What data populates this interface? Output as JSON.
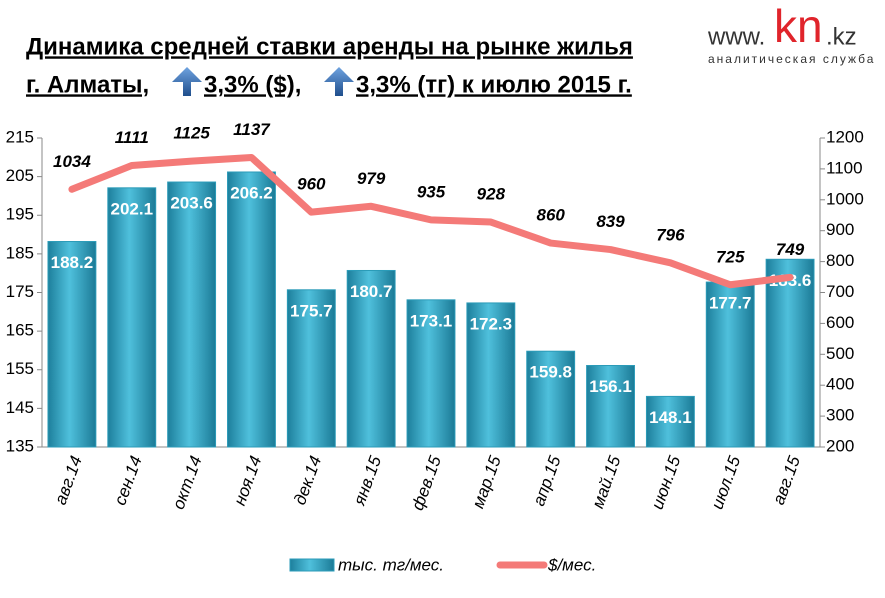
{
  "chart_data": {
    "type": "bar",
    "title": [
      "Динамика средней  ставки аренды на рынке жилья",
      "г. Алматы,",
      "3,3% ($),",
      "3,3% (тг) к июлю 2015 г."
    ],
    "logo": {
      "prefix": "www.",
      "brand": "kn",
      "suffix": ".kz",
      "tagline": "аналитическая служба"
    },
    "categories": [
      "авг.14",
      "сен.14",
      "окт.14",
      "ноя.14",
      "дек.14",
      "янв.15",
      "фев.15",
      "мар.15",
      "апр.15",
      "май.15",
      "июн.15",
      "июл.15",
      "авг.15"
    ],
    "series": [
      {
        "name": "тыс. тг/мес.",
        "type": "bar",
        "color": "#2b9bb8",
        "values": [
          188.2,
          202.1,
          203.6,
          206.2,
          175.7,
          180.7,
          173.1,
          172.3,
          159.8,
          156.1,
          148.1,
          177.7,
          183.6
        ]
      },
      {
        "name": "$/мес.",
        "type": "line",
        "axis": "y2",
        "color": "#f47a78",
        "values": [
          1034,
          1111,
          1125,
          1137,
          960,
          979,
          935,
          928,
          860,
          839,
          796,
          725,
          749
        ]
      }
    ],
    "ylim": [
      135,
      215
    ],
    "yticks": [
      135,
      145,
      155,
      165,
      175,
      185,
      195,
      205,
      215
    ],
    "y2lim": [
      200,
      1200
    ],
    "y2ticks": [
      200,
      300,
      400,
      500,
      600,
      700,
      800,
      900,
      1000,
      1100,
      1200
    ],
    "legend": "bottom"
  }
}
